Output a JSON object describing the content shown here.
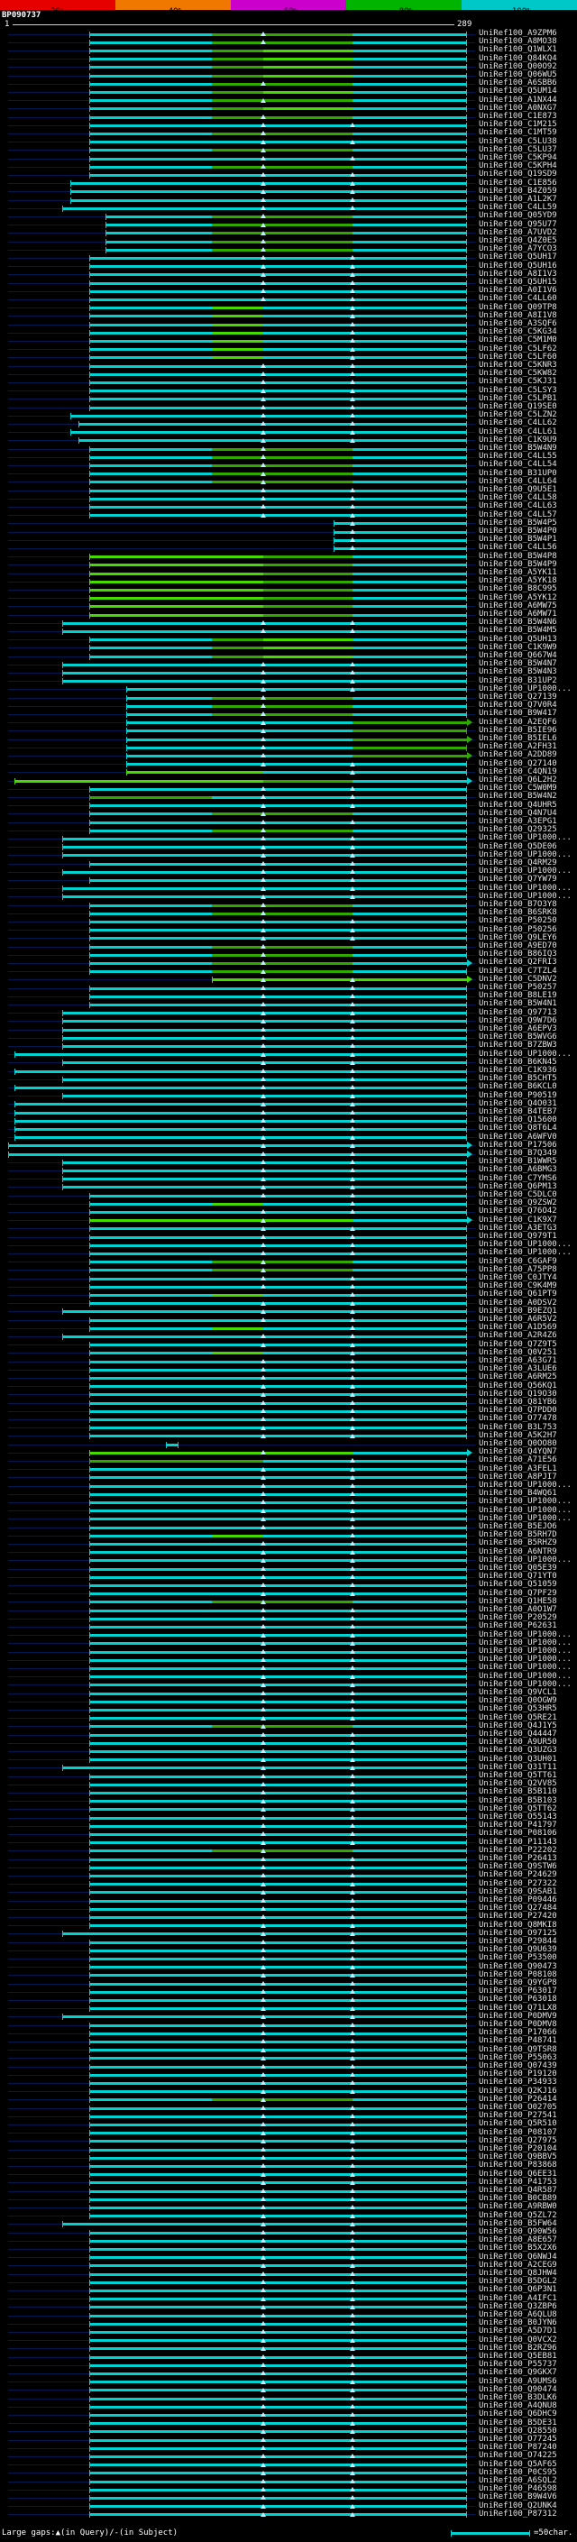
{
  "query": {
    "name": "BP090737",
    "length": 289
  },
  "identity_key": {
    "segments": [
      {
        "label": "20%",
        "color": "#e60000"
      },
      {
        "label": "~40%",
        "color": "#f07800"
      },
      {
        "label": "~60%",
        "color": "#cc00cc"
      },
      {
        "label": "~80%",
        "color": "#00b400"
      },
      {
        "label": "~100%",
        "color": "#00c8c8"
      }
    ]
  },
  "ruler": {
    "start": "1",
    "end": "289"
  },
  "footer": {
    "gap_legend": "Large gaps:▲(in Query)/-(in Subject)",
    "scale_label": "=50char."
  },
  "label_prefix": "UniRef100_",
  "colors": {
    "c": "#00d2d2",
    "g": "#2fa800",
    "G": "#44dc00"
  },
  "markers": [
    161,
    217
  ],
  "chart_data": {
    "type": "bar",
    "orientation": "horizontal",
    "title": "BP090737",
    "xlabel": "query position (aa)",
    "xlim": [
      1,
      289
    ],
    "identity_scale_ticks": [
      "20%",
      "~40%",
      "~60%",
      "~80%",
      "~100%"
    ],
    "gap_marker_positions": [
      161,
      217
    ],
    "note": "each row = one UniRef100 hit alignment span on the query; spans and identity colors listed in hits[] via patterns{}"
  },
  "patterns": {
    "p1": [
      [
        52,
        289,
        "c"
      ]
    ],
    "p2": [
      [
        52,
        129,
        "c"
      ],
      [
        129,
        217,
        "g"
      ],
      [
        217,
        289,
        "c"
      ]
    ],
    "p3": [
      [
        52,
        129,
        "c"
      ],
      [
        129,
        161,
        "g"
      ],
      [
        161,
        217,
        "G"
      ],
      [
        217,
        289,
        "c"
      ]
    ],
    "p4": [
      [
        52,
        129,
        "c"
      ],
      [
        129,
        161,
        "G"
      ],
      [
        161,
        289,
        "c"
      ]
    ],
    "p5": [
      [
        35,
        289,
        "c"
      ]
    ],
    "p6": [
      [
        40,
        289,
        "c"
      ]
    ],
    "p7": [
      [
        62,
        129,
        "c"
      ],
      [
        129,
        217,
        "g"
      ],
      [
        217,
        289,
        "c"
      ]
    ],
    "p8": [
      [
        205,
        289,
        "c"
      ]
    ],
    "p9": [
      [
        52,
        161,
        "G"
      ],
      [
        161,
        217,
        "g"
      ],
      [
        217,
        289,
        "c"
      ]
    ],
    "p10": [
      [
        75,
        289,
        "c"
      ]
    ],
    "p11": [
      [
        75,
        129,
        "c"
      ],
      [
        129,
        217,
        "g"
      ],
      [
        217,
        289,
        "c"
      ]
    ],
    "p12": [
      [
        75,
        217,
        "c"
      ],
      [
        217,
        289,
        "g"
      ]
    ],
    "p13": [
      [
        75,
        161,
        "G"
      ],
      [
        161,
        289,
        "c"
      ]
    ],
    "p14": [
      [
        5,
        161,
        "G"
      ],
      [
        161,
        217,
        "g"
      ],
      [
        217,
        289,
        "c"
      ]
    ],
    "p15": [
      [
        52,
        129,
        "g"
      ],
      [
        129,
        289,
        "c"
      ]
    ],
    "p16": [
      [
        129,
        289,
        "G"
      ]
    ],
    "p17": [
      [
        1,
        289,
        "c"
      ]
    ],
    "p18": [
      [
        5,
        289,
        "c"
      ]
    ],
    "p19": [
      [
        100,
        108,
        "c"
      ]
    ],
    "p20": [
      [
        52,
        217,
        "G"
      ],
      [
        217,
        289,
        "c"
      ]
    ],
    "p21": [
      [
        52,
        161,
        "g"
      ],
      [
        161,
        289,
        "c"
      ]
    ],
    "p22": [
      [
        45,
        289,
        "c"
      ]
    ]
  },
  "hits": [
    [
      "A9ZPM6",
      "p2"
    ],
    [
      "A8MO38",
      "p2"
    ],
    [
      "Q1WLX1",
      "p3"
    ],
    [
      "Q84KQ4",
      "p3"
    ],
    [
      "Q00O92",
      "p3"
    ],
    [
      "Q06WU5",
      "p3"
    ],
    [
      "A6SBB6",
      "p2"
    ],
    [
      "Q5UM14",
      "p3"
    ],
    [
      "A1NX44",
      "p2"
    ],
    [
      "A0NXG7",
      "p3"
    ],
    [
      "C1E873",
      "p2"
    ],
    [
      "C1M215",
      "p1"
    ],
    [
      "C1MT59",
      "p2"
    ],
    [
      "C5LU38",
      "p1"
    ],
    [
      "C5LU37",
      "p2"
    ],
    [
      "C5KP94",
      "p1"
    ],
    [
      "C5KPH4",
      "p2"
    ],
    [
      "Q19SD9",
      "p1"
    ],
    [
      "C1E856",
      "p6"
    ],
    [
      "B4Z059",
      "p6"
    ],
    [
      "A1L2K7",
      "p6"
    ],
    [
      "C4LL59",
      "p5"
    ],
    [
      "Q05YD9",
      "p7"
    ],
    [
      "Q95U77",
      "p7"
    ],
    [
      "A7UVD2",
      "p7"
    ],
    [
      "Q4Z0E5",
      "p7"
    ],
    [
      "A7YCO3",
      "p7"
    ],
    [
      "Q5UH17",
      "p1"
    ],
    [
      "Q5UH16",
      "p1"
    ],
    [
      "A8I1V3",
      "p1"
    ],
    [
      "Q5UH15",
      "p1"
    ],
    [
      "A0I1V6",
      "p1"
    ],
    [
      "C4LL60",
      "p1"
    ],
    [
      "Q09TP8",
      "p4"
    ],
    [
      "A8I1V8",
      "p4"
    ],
    [
      "A3SQF6",
      "p4"
    ],
    [
      "C5KG34",
      "p4"
    ],
    [
      "C5M1M0",
      "p4"
    ],
    [
      "C5LF62",
      "p4"
    ],
    [
      "C5LF60",
      "p4"
    ],
    [
      "C5KNR3",
      "p1"
    ],
    [
      "C5KW82",
      "p1"
    ],
    [
      "C5KJ31",
      "p1"
    ],
    [
      "C5LSY3",
      "p1"
    ],
    [
      "C5LPB1",
      "p1"
    ],
    [
      "Q19SE0",
      "p1"
    ],
    [
      "C5LZN2",
      "p6"
    ],
    [
      "C4LL62",
      "p22"
    ],
    [
      "C4LL61",
      "p6"
    ],
    [
      "C1K9U9",
      "p22"
    ],
    [
      "B5W4N9",
      "p2"
    ],
    [
      "C4LL55",
      "p2"
    ],
    [
      "C4LL54",
      "p2"
    ],
    [
      "B31UP0",
      "p2"
    ],
    [
      "C4LL64",
      "p2"
    ],
    [
      "Q9U5E1",
      "p1"
    ],
    [
      "C4LL58",
      "p1"
    ],
    [
      "C4LL63",
      "p1"
    ],
    [
      "C4LL57",
      "p1"
    ],
    [
      "B5W4P5",
      "p8"
    ],
    [
      "B5W4P0",
      "p8"
    ],
    [
      "B5W4P1",
      "p8"
    ],
    [
      "C4LL56",
      "p8"
    ],
    [
      "B5W4P8",
      "p9"
    ],
    [
      "B5W4P9",
      "p9"
    ],
    [
      "A5YK11",
      "p9"
    ],
    [
      "A5YK18",
      "p9"
    ],
    [
      "B8C995",
      "p9"
    ],
    [
      "A5YK12",
      "p9"
    ],
    [
      "A6MW75",
      "p9"
    ],
    [
      "A6MW71",
      "p9"
    ],
    [
      "B5W4N6",
      "p5"
    ],
    [
      "B5W4M5",
      "p5"
    ],
    [
      "Q5UH13",
      "p3"
    ],
    [
      "C1K9W9",
      "p3"
    ],
    [
      "Q667W4",
      "p3"
    ],
    [
      "B5W4N7",
      "p5"
    ],
    [
      "B5W4N3",
      "p5"
    ],
    [
      "B31UP2",
      "p5"
    ],
    [
      "UP1000...",
      "p10"
    ],
    [
      "Q27139",
      "p11"
    ],
    [
      "Q7V0R4",
      "p11"
    ],
    [
      "B9W417",
      "p11"
    ],
    [
      "A2EQF6",
      "p12",
      1
    ],
    [
      "B5IE96",
      "p12"
    ],
    [
      "B5IEL6",
      "p12",
      1
    ],
    [
      "A2FH31",
      "p12"
    ],
    [
      "A2DD89",
      "p12",
      1
    ],
    [
      "Q27140",
      "p10"
    ],
    [
      "C4QN19",
      "p13"
    ],
    [
      "Q6L2H2",
      "p14",
      1
    ],
    [
      "C5W0M9",
      "p1"
    ],
    [
      "B5W4N2",
      "p15"
    ],
    [
      "Q4UHR5",
      "p1"
    ],
    [
      "Q4N7U4",
      "p2"
    ],
    [
      "A3EPG1",
      "p1"
    ],
    [
      "Q29325",
      "p2"
    ],
    [
      "UP1000...",
      "p5"
    ],
    [
      "Q5DE06",
      "p5"
    ],
    [
      "UP1000...",
      "p5"
    ],
    [
      "Q4RM29",
      "p1"
    ],
    [
      "UP1000...",
      "p5"
    ],
    [
      "Q7YW79",
      "p1"
    ],
    [
      "UP1000...",
      "p5"
    ],
    [
      "UP1000...",
      "p5"
    ],
    [
      "B7O3Y8",
      "p2"
    ],
    [
      "B6SRK8",
      "p2"
    ],
    [
      "P50250",
      "p1"
    ],
    [
      "P50256",
      "p1"
    ],
    [
      "Q9LEY6",
      "p1"
    ],
    [
      "A9ED70",
      "p2"
    ],
    [
      "B86IQ3",
      "p2"
    ],
    [
      "Q2FRI3",
      "p2",
      1
    ],
    [
      "C7TZL4",
      "p2"
    ],
    [
      "C5DNV2",
      "p16",
      1
    ],
    [
      "P50257",
      "p1"
    ],
    [
      "B8LE19",
      "p1"
    ],
    [
      "B5W4N1",
      "p1"
    ],
    [
      "Q97713",
      "p5"
    ],
    [
      "Q9W7D6",
      "p5"
    ],
    [
      "A6EPV3",
      "p5"
    ],
    [
      "B5WVG6",
      "p5"
    ],
    [
      "B7ZBW3",
      "p5"
    ],
    [
      "UP1000...",
      "p18"
    ],
    [
      "B6KN45",
      "p5"
    ],
    [
      "C1K936",
      "p18"
    ],
    [
      "B5CHT5",
      "p5"
    ],
    [
      "B6KCL0",
      "p18"
    ],
    [
      "P90519",
      "p5"
    ],
    [
      "Q4O031",
      "p18"
    ],
    [
      "B4TEB7",
      "p18"
    ],
    [
      "Q15600",
      "p18"
    ],
    [
      "Q8T6L4",
      "p18"
    ],
    [
      "A6WFV0",
      "p18"
    ],
    [
      "P17506",
      "p17",
      1
    ],
    [
      "B7Q349",
      "p17",
      1
    ],
    [
      "B1WWR5",
      "p5"
    ],
    [
      "A6BMG3",
      "p5"
    ],
    [
      "C7YMS6",
      "p5"
    ],
    [
      "Q6PM13",
      "p5"
    ],
    [
      "C5DLC0",
      "p1"
    ],
    [
      "Q9ZSW2",
      "p4"
    ],
    [
      "Q76O42",
      "p1"
    ],
    [
      "C1K9X7",
      "p20",
      1
    ],
    [
      "A3ETG3",
      "p1"
    ],
    [
      "Q979T1",
      "p1"
    ],
    [
      "UP1000...",
      "p1"
    ],
    [
      "UP1000...",
      "p1"
    ],
    [
      "C6GAF9",
      "p2"
    ],
    [
      "A75PP8",
      "p2"
    ],
    [
      "C0JTY4",
      "p1"
    ],
    [
      "C9K4M9",
      "p1"
    ],
    [
      "Q61PT9",
      "p4"
    ],
    [
      "A0DSV2",
      "p1"
    ],
    [
      "B9EZQ1",
      "p5"
    ],
    [
      "A6R5V2",
      "p1"
    ],
    [
      "A1D569",
      "p4"
    ],
    [
      "A2R4Z6",
      "p5"
    ],
    [
      "Q7Z9T5",
      "p1"
    ],
    [
      "Q0V251",
      "p4"
    ],
    [
      "A63G71",
      "p1"
    ],
    [
      "A3LUE6",
      "p1"
    ],
    [
      "A6RM25",
      "p1"
    ],
    [
      "Q56KQ1",
      "p1"
    ],
    [
      "Q19O30",
      "p1"
    ],
    [
      "Q81YB6",
      "p1"
    ],
    [
      "Q7PDD0",
      "p1"
    ],
    [
      "O77478",
      "p1"
    ],
    [
      "B3L753",
      "p1"
    ],
    [
      "A5K2H7",
      "p1"
    ],
    [
      "Q0OO80",
      "p19"
    ],
    [
      "Q4YQN7",
      "p20",
      1
    ],
    [
      "A71E56",
      "p21"
    ],
    [
      "A3FEL1",
      "p1"
    ],
    [
      "A8PJI7",
      "p1"
    ],
    [
      "UP1000...",
      "p1"
    ],
    [
      "B4WQ61",
      "p1"
    ],
    [
      "UP1000...",
      "p1"
    ],
    [
      "UP1000...",
      "p1"
    ],
    [
      "UP1000...",
      "p1"
    ],
    [
      "B5EJO6",
      "p1"
    ],
    [
      "B5RH7D",
      "p4"
    ],
    [
      "B5RHZ9",
      "p1"
    ],
    [
      "A6NTR9",
      "p1"
    ],
    [
      "UP1000...",
      "p1"
    ],
    [
      "Q05E39",
      "p1"
    ],
    [
      "Q71YT0",
      "p1"
    ],
    [
      "Q51059",
      "p1"
    ],
    [
      "Q7PF29",
      "p1"
    ],
    [
      "Q1HE58",
      "p2"
    ],
    [
      "A0O1W7",
      "p1"
    ],
    [
      "P20529",
      "p1"
    ],
    [
      "P62631",
      "p1"
    ],
    [
      "UP1000...",
      "p1"
    ],
    [
      "UP1000...",
      "p1"
    ],
    [
      "UP1000...",
      "p1"
    ],
    [
      "UP1000...",
      "p1"
    ],
    [
      "UP1000...",
      "p1"
    ],
    [
      "UP1000...",
      "p1"
    ],
    [
      "UP1000...",
      "p1"
    ],
    [
      "Q9VCL1",
      "p1"
    ],
    [
      "Q0OGW9",
      "p1"
    ],
    [
      "Q53HR5",
      "p1"
    ],
    [
      "Q5RE21",
      "p1"
    ],
    [
      "Q4J1Y5",
      "p2"
    ],
    [
      "Q44447",
      "p1"
    ],
    [
      "A9UR50",
      "p1"
    ],
    [
      "Q3UZG3",
      "p1"
    ],
    [
      "Q3UH01",
      "p1"
    ],
    [
      "Q31T11",
      "p5"
    ],
    [
      "Q5TT61",
      "p1"
    ],
    [
      "Q2VV85",
      "p1"
    ],
    [
      "B5B110",
      "p1"
    ],
    [
      "B5B103",
      "p1"
    ],
    [
      "Q5TT62",
      "p1"
    ],
    [
      "O55143",
      "p1"
    ],
    [
      "P41797",
      "p1"
    ],
    [
      "P08106",
      "p1"
    ],
    [
      "P11143",
      "p1"
    ],
    [
      "P22202",
      "p2"
    ],
    [
      "P26413",
      "p1"
    ],
    [
      "Q9STW6",
      "p1"
    ],
    [
      "P24629",
      "p1"
    ],
    [
      "P27322",
      "p1"
    ],
    [
      "Q9SAB1",
      "p1"
    ],
    [
      "P09446",
      "p1"
    ],
    [
      "Q27484",
      "p1"
    ],
    [
      "P27420",
      "p1"
    ],
    [
      "Q8MKI8",
      "p1"
    ],
    [
      "O97125",
      "p5"
    ],
    [
      "P29844",
      "p1"
    ],
    [
      "Q9U639",
      "p1"
    ],
    [
      "P53500",
      "p1"
    ],
    [
      "Q90473",
      "p1"
    ],
    [
      "P08108",
      "p1"
    ],
    [
      "Q9YGP8",
      "p1"
    ],
    [
      "P63017",
      "p1"
    ],
    [
      "P63018",
      "p1"
    ],
    [
      "Q71LX8",
      "p1"
    ],
    [
      "P0DMV9",
      "p5"
    ],
    [
      "P0DMV8",
      "p1"
    ],
    [
      "P17066",
      "p1"
    ],
    [
      "P48741",
      "p1"
    ],
    [
      "Q9TSR8",
      "p1"
    ],
    [
      "P55063",
      "p1"
    ],
    [
      "Q07439",
      "p1"
    ],
    [
      "P19120",
      "p1"
    ],
    [
      "P34933",
      "p1"
    ],
    [
      "Q2KJ16",
      "p1"
    ],
    [
      "P26414",
      "p2"
    ],
    [
      "O02705",
      "p1"
    ],
    [
      "P27541",
      "p1"
    ],
    [
      "Q5R510",
      "p1"
    ],
    [
      "P08107",
      "p1"
    ],
    [
      "Q27975",
      "p1"
    ],
    [
      "P20104",
      "p1"
    ],
    [
      "Q9BBV5",
      "p1"
    ],
    [
      "P83868",
      "p1"
    ],
    [
      "Q6EE31",
      "p1"
    ],
    [
      "P41753",
      "p1"
    ],
    [
      "Q4R587",
      "p1"
    ],
    [
      "B0CB89",
      "p1"
    ],
    [
      "A9RBW0",
      "p1"
    ],
    [
      "Q5ZL72",
      "p1"
    ],
    [
      "B5FW64",
      "p5"
    ],
    [
      "Q90W56",
      "p1"
    ],
    [
      "A8E657",
      "p1"
    ],
    [
      "B5X2X6",
      "p1"
    ],
    [
      "Q6NWJ4",
      "p1"
    ],
    [
      "A2CEG9",
      "p1"
    ],
    [
      "Q8JHW4",
      "p1"
    ],
    [
      "B5DGL2",
      "p1"
    ],
    [
      "Q6P3N1",
      "p1"
    ],
    [
      "A4IFC1",
      "p1"
    ],
    [
      "Q3ZBP6",
      "p1"
    ],
    [
      "A6QLU8",
      "p1"
    ],
    [
      "B0JYN6",
      "p1"
    ],
    [
      "A5D7D1",
      "p1"
    ],
    [
      "Q0VCX2",
      "p1"
    ],
    [
      "B2RZ96",
      "p1"
    ],
    [
      "Q5EB81",
      "p1"
    ],
    [
      "P55737",
      "p1"
    ],
    [
      "Q9GKX7",
      "p1"
    ],
    [
      "A9UMS6",
      "p1"
    ],
    [
      "Q90474",
      "p1"
    ],
    [
      "B3DLK6",
      "p1"
    ],
    [
      "A4QNU8",
      "p1"
    ],
    [
      "Q6DHC9",
      "p1"
    ],
    [
      "B5DE31",
      "p1"
    ],
    [
      "Q28550",
      "p1"
    ],
    [
      "O77245",
      "p1"
    ],
    [
      "P87240",
      "p1"
    ],
    [
      "O74225",
      "p1"
    ],
    [
      "Q5AF65",
      "p1"
    ],
    [
      "P0CS95",
      "p1"
    ],
    [
      "A6SQL2",
      "p1"
    ],
    [
      "P46598",
      "p1"
    ],
    [
      "B9W4V6",
      "p1"
    ],
    [
      "Q2UNK4",
      "p1"
    ],
    [
      "P87312",
      "p1"
    ]
  ]
}
